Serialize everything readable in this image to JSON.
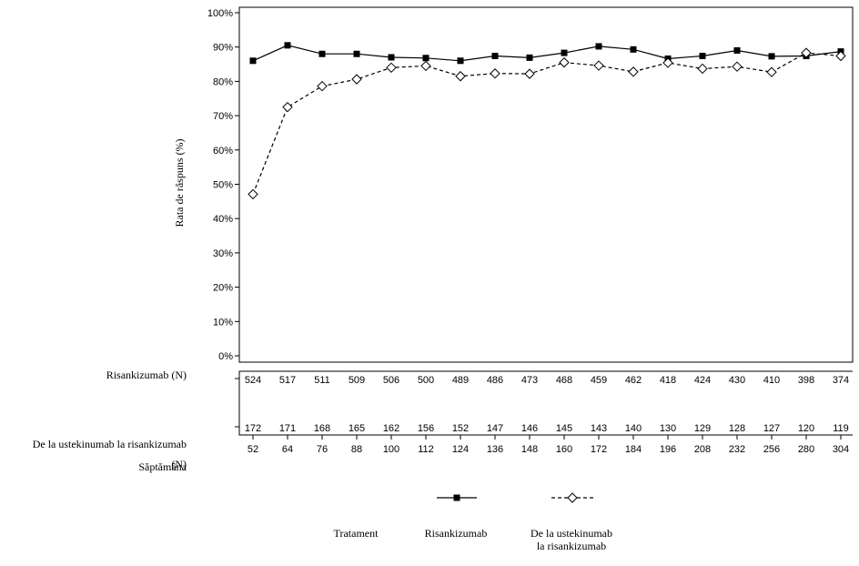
{
  "chart_data": {
    "type": "line",
    "title": "",
    "ylabel": "Rata de răspuns (%)",
    "xlabel": "Săptămâna",
    "ylim": [
      0,
      100
    ],
    "y_ticks": [
      "0%",
      "10%",
      "20%",
      "30%",
      "40%",
      "50%",
      "60%",
      "70%",
      "80%",
      "90%",
      "100%"
    ],
    "x": [
      52,
      64,
      76,
      88,
      100,
      112,
      124,
      136,
      148,
      160,
      172,
      184,
      196,
      208,
      232,
      256,
      280,
      304
    ],
    "grid": false,
    "legend_position": "bottom",
    "series": [
      {
        "name": "Risankizumab",
        "style": "solid",
        "marker": "filled-square",
        "color": "#000000",
        "values": [
          86.0,
          90.5,
          88.0,
          88.0,
          87.0,
          86.8,
          86.0,
          87.4,
          86.9,
          88.3,
          90.2,
          89.3,
          86.6,
          87.4,
          89.0,
          87.3,
          87.4,
          88.7
        ]
      },
      {
        "name": "De la ustekinumab la risankizumab",
        "style": "dashed",
        "marker": "open-diamond",
        "color": "#000000",
        "values": [
          47.1,
          72.5,
          78.6,
          80.6,
          84.0,
          84.5,
          81.5,
          82.3,
          82.2,
          85.5,
          84.6,
          82.8,
          85.4,
          83.7,
          84.3,
          82.7,
          88.3,
          87.4
        ]
      }
    ],
    "risk_table": {
      "rows": [
        {
          "label": "Risankizumab (N)",
          "values": [
            "524",
            "517",
            "511",
            "509",
            "506",
            "500",
            "489",
            "486",
            "473",
            "468",
            "459",
            "462",
            "418",
            "424",
            "430",
            "410",
            "398",
            "374"
          ]
        },
        {
          "label_lines": [
            "De la ustekinumab la risankizumab",
            "(N)"
          ],
          "values": [
            "172",
            "171",
            "168",
            "165",
            "162",
            "156",
            "152",
            "147",
            "146",
            "145",
            "143",
            "140",
            "130",
            "129",
            "128",
            "127",
            "120",
            "119"
          ]
        }
      ]
    },
    "legend": {
      "title": "Tratament",
      "items": [
        {
          "label_lines": [
            "Risankizumab"
          ]
        },
        {
          "label_lines": [
            "De la ustekinumab",
            "la risankizumab"
          ]
        }
      ]
    }
  }
}
